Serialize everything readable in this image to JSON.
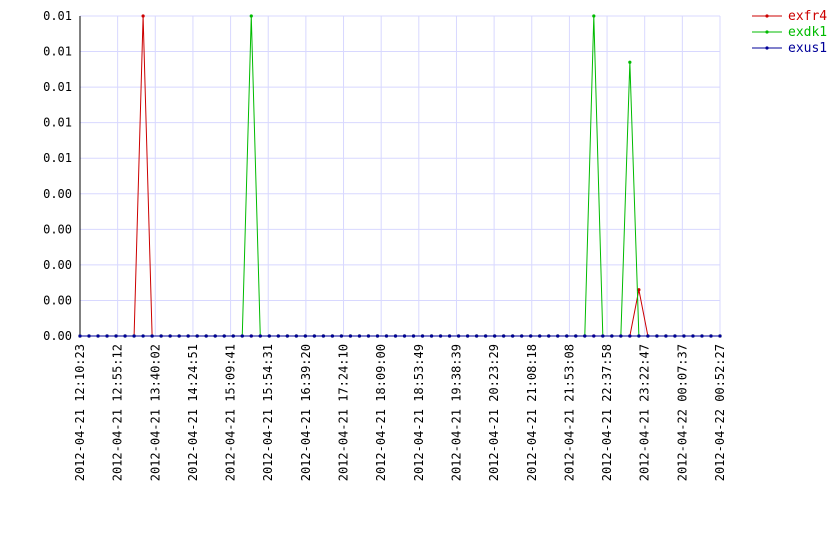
{
  "chart_data": {
    "type": "line",
    "x": [
      "2012-04-21 12:10:23",
      "2012-04-21 12:21:07",
      "2012-04-21 12:31:51",
      "2012-04-21 12:42:35",
      "2012-04-21 12:53:19",
      "2012-04-21 13:04:03",
      "2012-04-21 13:14:47",
      "2012-04-21 13:25:31",
      "2012-04-21 13:36:15",
      "2012-04-21 13:46:59",
      "2012-04-21 13:57:43",
      "2012-04-21 14:08:27",
      "2012-04-21 14:19:11",
      "2012-04-21 14:29:55",
      "2012-04-21 14:40:39",
      "2012-04-21 14:51:23",
      "2012-04-21 15:02:07",
      "2012-04-21 15:12:51",
      "2012-04-21 15:23:35",
      "2012-04-21 15:34:19",
      "2012-04-21 15:45:03",
      "2012-04-21 15:55:47",
      "2012-04-21 16:06:31",
      "2012-04-21 16:17:15",
      "2012-04-21 16:27:59",
      "2012-04-21 16:38:43",
      "2012-04-21 16:49:27",
      "2012-04-21 17:00:11",
      "2012-04-21 17:10:55",
      "2012-04-21 17:21:39",
      "2012-04-21 17:32:23",
      "2012-04-21 17:43:07",
      "2012-04-21 17:53:51",
      "2012-04-21 18:04:35",
      "2012-04-21 18:15:19",
      "2012-04-21 18:26:03",
      "2012-04-21 18:36:47",
      "2012-04-21 18:47:31",
      "2012-04-21 18:58:15",
      "2012-04-21 19:08:59",
      "2012-04-21 19:19:43",
      "2012-04-21 19:30:27",
      "2012-04-21 19:41:11",
      "2012-04-21 19:51:55",
      "2012-04-21 20:02:39",
      "2012-04-21 20:13:23",
      "2012-04-21 20:24:07",
      "2012-04-21 20:34:51",
      "2012-04-21 20:45:35",
      "2012-04-21 20:56:19",
      "2012-04-21 21:07:03",
      "2012-04-21 21:17:47",
      "2012-04-21 21:28:31",
      "2012-04-21 21:39:15",
      "2012-04-21 21:49:59",
      "2012-04-21 22:00:43",
      "2012-04-21 22:11:27",
      "2012-04-21 22:22:11",
      "2012-04-21 22:32:55",
      "2012-04-21 22:43:39",
      "2012-04-21 22:54:23",
      "2012-04-21 23:05:07",
      "2012-04-21 23:15:51",
      "2012-04-21 23:26:35",
      "2012-04-21 23:37:19",
      "2012-04-21 23:48:03",
      "2012-04-21 23:58:47",
      "2012-04-22 00:09:31",
      "2012-04-22 00:20:15",
      "2012-04-22 00:30:59",
      "2012-04-22 00:41:43",
      "2012-04-22 00:52:27"
    ],
    "series": [
      {
        "name": "exfr4",
        "color": "#cc0000",
        "values": [
          0,
          0,
          0,
          0,
          0,
          0,
          0,
          0.009,
          0,
          0,
          0,
          0,
          0,
          0,
          0,
          0,
          0,
          0,
          0,
          0,
          0,
          0,
          0,
          0,
          0,
          0,
          0,
          0,
          0,
          0,
          0,
          0,
          0,
          0,
          0,
          0,
          0,
          0,
          0,
          0,
          0,
          0,
          0,
          0,
          0,
          0,
          0,
          0,
          0,
          0,
          0,
          0,
          0,
          0,
          0,
          0,
          0,
          0,
          0,
          0,
          0,
          0,
          0.0013,
          0,
          0,
          0,
          0,
          0,
          0,
          0,
          0,
          0
        ]
      },
      {
        "name": "exdk1",
        "color": "#00bb00",
        "values": [
          0,
          0,
          0,
          0,
          0,
          0,
          0,
          0,
          0,
          0,
          0,
          0,
          0,
          0,
          0,
          0,
          0,
          0,
          0,
          0.009,
          0,
          0,
          0,
          0,
          0,
          0,
          0,
          0,
          0,
          0,
          0,
          0,
          0,
          0,
          0,
          0,
          0,
          0,
          0,
          0,
          0,
          0,
          0,
          0,
          0,
          0,
          0,
          0,
          0,
          0,
          0,
          0,
          0,
          0,
          0,
          0,
          0,
          0.009,
          0,
          0,
          0,
          0.0077,
          0,
          0,
          0,
          0,
          0,
          0,
          0,
          0,
          0,
          0
        ]
      },
      {
        "name": "exus1",
        "color": "#000099",
        "values": [
          0,
          0,
          0,
          0,
          0,
          0,
          0,
          0,
          0,
          0,
          0,
          0,
          0,
          0,
          0,
          0,
          0,
          0,
          0,
          0,
          0,
          0,
          0,
          0,
          0,
          0,
          0,
          0,
          0,
          0,
          0,
          0,
          0,
          0,
          0,
          0,
          0,
          0,
          0,
          0,
          0,
          0,
          0,
          0,
          0,
          0,
          0,
          0,
          0,
          0,
          0,
          0,
          0,
          0,
          0,
          0,
          0,
          0,
          0,
          0,
          0,
          0,
          0,
          0,
          0,
          0,
          0,
          0,
          0,
          0,
          0,
          0
        ]
      }
    ],
    "xlim": [
      "2012-04-21 12:10:23",
      "2012-04-22 00:52:27"
    ],
    "xticks": [
      "2012-04-21 12:10:23",
      "2012-04-21 12:55:12",
      "2012-04-21 13:40:02",
      "2012-04-21 14:24:51",
      "2012-04-21 15:09:41",
      "2012-04-21 15:54:31",
      "2012-04-21 16:39:20",
      "2012-04-21 17:24:10",
      "2012-04-21 18:09:00",
      "2012-04-21 18:53:49",
      "2012-04-21 19:38:39",
      "2012-04-21 20:23:29",
      "2012-04-21 21:08:18",
      "2012-04-21 21:53:08",
      "2012-04-21 22:37:58",
      "2012-04-21 23:22:47",
      "2012-04-22 00:07:37",
      "2012-04-22 00:52:27"
    ],
    "ylim": [
      0,
      0.009
    ],
    "yticks": [
      {
        "value": 0,
        "label": "0.00"
      },
      {
        "value": 0.001,
        "label": "0.00"
      },
      {
        "value": 0.002,
        "label": "0.00"
      },
      {
        "value": 0.003,
        "label": "0.00"
      },
      {
        "value": 0.004,
        "label": "0.00"
      },
      {
        "value": 0.005,
        "label": "0.01"
      },
      {
        "value": 0.006,
        "label": "0.01"
      },
      {
        "value": 0.007,
        "label": "0.01"
      },
      {
        "value": 0.008,
        "label": "0.01"
      },
      {
        "value": 0.009,
        "label": "0.01"
      }
    ],
    "grid": true,
    "legend": "upper right"
  }
}
